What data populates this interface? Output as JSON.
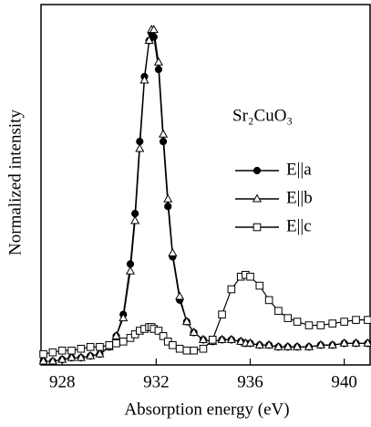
{
  "chart_data": {
    "type": "line",
    "xlabel": "Absorption energy (eV)",
    "ylabel": "Normalized intensity",
    "annotation": "Sr₂CuO₃",
    "x": [
      927.2,
      927.6,
      928,
      928.4,
      928.8,
      929.2,
      929.6,
      930,
      930.3,
      930.6,
      930.9,
      931.1,
      931.3,
      931.5,
      931.7,
      931.8,
      931.9,
      932.1,
      932.3,
      932.5,
      932.7,
      933,
      933.3,
      933.6,
      934,
      934.4,
      934.8,
      935.2,
      935.6,
      935.8,
      936,
      936.4,
      936.8,
      937.2,
      937.6,
      938,
      938.5,
      939,
      939.5,
      940,
      940.5,
      941
    ],
    "series": [
      {
        "name": "E||a",
        "color": "#000000",
        "marker": "circle",
        "marker_fill": "#000000",
        "values": [
          0.01,
          0.01,
          0.015,
          0.02,
          0.02,
          0.025,
          0.03,
          0.05,
          0.08,
          0.14,
          0.28,
          0.42,
          0.62,
          0.8,
          0.9,
          0.92,
          0.91,
          0.82,
          0.62,
          0.44,
          0.3,
          0.18,
          0.12,
          0.09,
          0.07,
          0.065,
          0.07,
          0.07,
          0.065,
          0.06,
          0.06,
          0.055,
          0.055,
          0.05,
          0.05,
          0.05,
          0.05,
          0.055,
          0.055,
          0.06,
          0.06,
          0.06
        ]
      },
      {
        "name": "E||b",
        "color": "#000000",
        "marker": "triangle",
        "marker_fill": "#ffffff",
        "values": [
          0.01,
          0.01,
          0.015,
          0.02,
          0.02,
          0.025,
          0.03,
          0.05,
          0.08,
          0.13,
          0.26,
          0.4,
          0.6,
          0.79,
          0.9,
          0.93,
          0.93,
          0.84,
          0.64,
          0.46,
          0.31,
          0.19,
          0.12,
          0.09,
          0.07,
          0.065,
          0.07,
          0.07,
          0.065,
          0.06,
          0.06,
          0.055,
          0.055,
          0.05,
          0.05,
          0.05,
          0.05,
          0.055,
          0.055,
          0.06,
          0.06,
          0.06
        ]
      },
      {
        "name": "E||c",
        "color": "#000000",
        "marker": "square",
        "marker_fill": "#ffffff",
        "values": [
          0.03,
          0.035,
          0.04,
          0.04,
          0.045,
          0.05,
          0.05,
          0.055,
          0.06,
          0.065,
          0.075,
          0.085,
          0.095,
          0.1,
          0.105,
          0.105,
          0.1,
          0.095,
          0.08,
          0.065,
          0.055,
          0.045,
          0.04,
          0.04,
          0.045,
          0.07,
          0.14,
          0.21,
          0.245,
          0.25,
          0.245,
          0.22,
          0.18,
          0.15,
          0.13,
          0.12,
          0.11,
          0.11,
          0.115,
          0.12,
          0.125,
          0.125
        ]
      }
    ],
    "xlim": [
      927.1,
      941.1
    ],
    "ylim": [
      0,
      1
    ],
    "xticks": [
      928,
      932,
      936,
      940
    ]
  }
}
